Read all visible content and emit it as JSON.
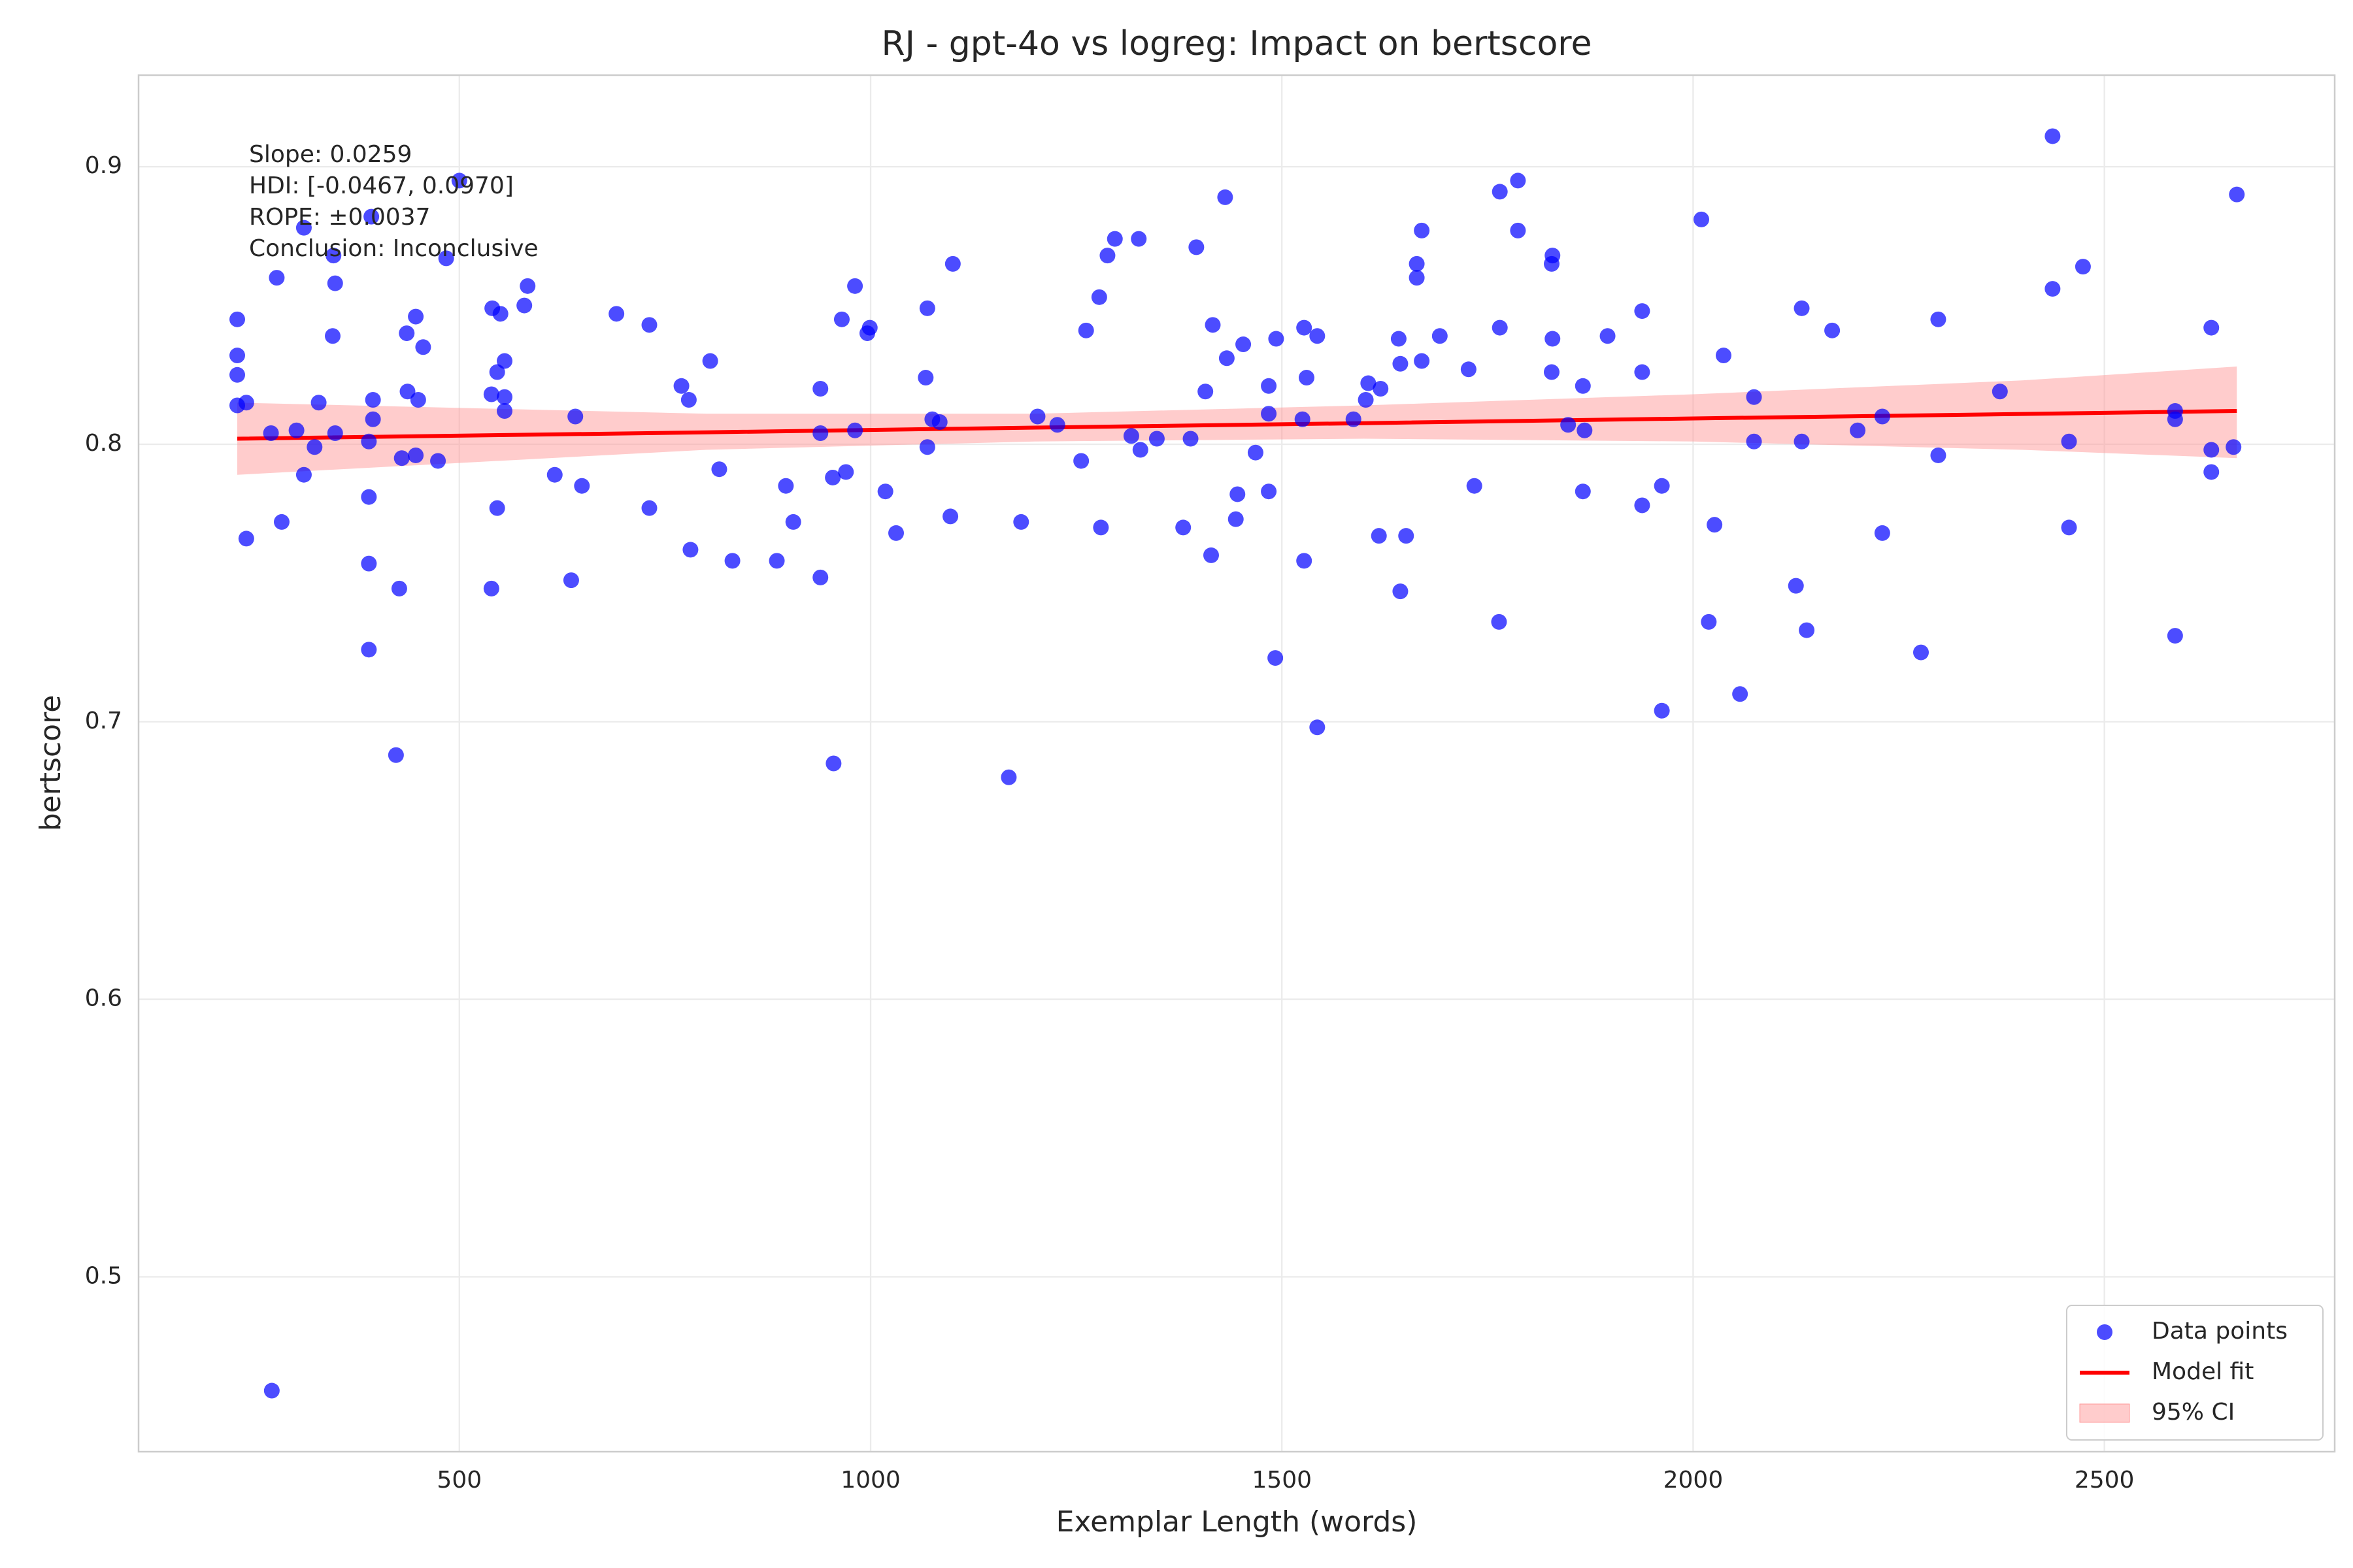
{
  "chart_data": {
    "type": "scatter",
    "title": "RJ - gpt-4o vs logreg: Impact on bertscore",
    "xlabel": "Exemplar Length (words)",
    "ylabel": "bertscore",
    "xlim": [
      110,
      2780
    ],
    "ylim": [
      0.437,
      0.933
    ],
    "xticks": [
      500,
      1000,
      1500,
      2000,
      2500
    ],
    "yticks": [
      0.5,
      0.6,
      0.7,
      0.8,
      0.9
    ],
    "grid": true,
    "legend": "lower right",
    "annotation": [
      "Slope: 0.0259",
      "HDI: [-0.0467, 0.0970]",
      "ROPE: ±0.0037",
      "Conclusion: Inconclusive"
    ],
    "series": [
      {
        "name": "Data points",
        "type": "scatter",
        "color": "#0000ff",
        "x": [
          230,
          230,
          230,
          230,
          241,
          241,
          271,
          272,
          278,
          284,
          302,
          311,
          311,
          324,
          329,
          346,
          349,
          349,
          347,
          390,
          390,
          390,
          390,
          393,
          395,
          395,
          423,
          427,
          430,
          436,
          437,
          447,
          447,
          450,
          456,
          474,
          484,
          500,
          539,
          539,
          540,
          546,
          546,
          550,
          555,
          555,
          555,
          579,
          583,
          616,
          636,
          641,
          649,
          691,
          731,
          731,
          770,
          779,
          781,
          805,
          816,
          832,
          886,
          897,
          906,
          939,
          939,
          939,
          954,
          955,
          965,
          970,
          981,
          981,
          996,
          999,
          1018,
          1031,
          1067,
          1069,
          1069,
          1075,
          1084,
          1097,
          1100,
          1168,
          1183,
          1203,
          1227,
          1256,
          1262,
          1278,
          1280,
          1288,
          1297,
          1317,
          1326,
          1328,
          1348,
          1380,
          1389,
          1396,
          1407,
          1414,
          1416,
          1431,
          1433,
          1444,
          1446,
          1453,
          1468,
          1484,
          1484,
          1484,
          1492,
          1493,
          1525,
          1527,
          1527,
          1530,
          1543,
          1543,
          1587,
          1602,
          1605,
          1618,
          1620,
          1642,
          1644,
          1644,
          1651,
          1664,
          1664,
          1670,
          1670,
          1692,
          1727,
          1734,
          1764,
          1765,
          1765,
          1787,
          1787,
          1828,
          1829,
          1829,
          1828,
          1848,
          1866,
          1866,
          1868,
          1896,
          1938,
          1938,
          1938,
          1962,
          1962,
          2010,
          2019,
          2026,
          2037,
          2057,
          2074,
          2074,
          2125,
          2132,
          2132,
          2138,
          2169,
          2200,
          2230,
          2230,
          2277,
          2298,
          2298,
          2373,
          2437,
          2437,
          2457,
          2457,
          2474,
          2586,
          2586,
          2586,
          2630,
          2630,
          2630,
          2657,
          2661
        ],
        "values": [
          0.845,
          0.832,
          0.825,
          0.814,
          0.815,
          0.766,
          0.804,
          0.459,
          0.86,
          0.772,
          0.805,
          0.789,
          0.878,
          0.799,
          0.815,
          0.839,
          0.858,
          0.804,
          0.868,
          0.781,
          0.757,
          0.726,
          0.801,
          0.882,
          0.816,
          0.809,
          0.688,
          0.748,
          0.795,
          0.84,
          0.819,
          0.846,
          0.796,
          0.816,
          0.835,
          0.794,
          0.867,
          0.895,
          0.748,
          0.818,
          0.849,
          0.777,
          0.826,
          0.847,
          0.817,
          0.812,
          0.83,
          0.85,
          0.857,
          0.789,
          0.751,
          0.81,
          0.785,
          0.847,
          0.843,
          0.777,
          0.821,
          0.816,
          0.762,
          0.83,
          0.791,
          0.758,
          0.758,
          0.785,
          0.772,
          0.82,
          0.752,
          0.804,
          0.788,
          0.685,
          0.845,
          0.79,
          0.857,
          0.805,
          0.84,
          0.842,
          0.783,
          0.768,
          0.824,
          0.849,
          0.799,
          0.809,
          0.808,
          0.774,
          0.865,
          0.68,
          0.772,
          0.81,
          0.807,
          0.794,
          0.841,
          0.853,
          0.77,
          0.868,
          0.874,
          0.803,
          0.874,
          0.798,
          0.802,
          0.77,
          0.802,
          0.871,
          0.819,
          0.76,
          0.843,
          0.889,
          0.831,
          0.773,
          0.782,
          0.836,
          0.797,
          0.821,
          0.811,
          0.783,
          0.723,
          0.838,
          0.809,
          0.758,
          0.842,
          0.824,
          0.698,
          0.839,
          0.809,
          0.816,
          0.822,
          0.767,
          0.82,
          0.838,
          0.829,
          0.747,
          0.767,
          0.86,
          0.865,
          0.877,
          0.83,
          0.839,
          0.827,
          0.785,
          0.736,
          0.842,
          0.891,
          0.877,
          0.895,
          0.865,
          0.868,
          0.838,
          0.826,
          0.807,
          0.821,
          0.783,
          0.805,
          0.839,
          0.848,
          0.826,
          0.778,
          0.785,
          0.704,
          0.881,
          0.736,
          0.771,
          0.832,
          0.71,
          0.817,
          0.801,
          0.749,
          0.849,
          0.801,
          0.733,
          0.841,
          0.805,
          0.81,
          0.768,
          0.725,
          0.845,
          0.796,
          0.819,
          0.911,
          0.856,
          0.801,
          0.77,
          0.864,
          0.812,
          0.809,
          0.731,
          0.842,
          0.798,
          0.79,
          0.799,
          0.89
        ]
      },
      {
        "name": "Model fit",
        "type": "line",
        "color": "#ff0000",
        "x": [
          230,
          800,
          1200,
          1600,
          2000,
          2400,
          2661
        ],
        "values": [
          0.802,
          0.8043,
          0.806,
          0.8076,
          0.8093,
          0.8109,
          0.812
        ]
      },
      {
        "name": "95% CI",
        "type": "band",
        "color": "#ff9999",
        "x": [
          230,
          800,
          1200,
          1600,
          2000,
          2400,
          2661
        ],
        "lower": [
          0.789,
          0.798,
          0.801,
          0.802,
          0.801,
          0.798,
          0.795
        ],
        "upper": [
          0.815,
          0.811,
          0.811,
          0.814,
          0.818,
          0.823,
          0.828
        ]
      }
    ]
  }
}
